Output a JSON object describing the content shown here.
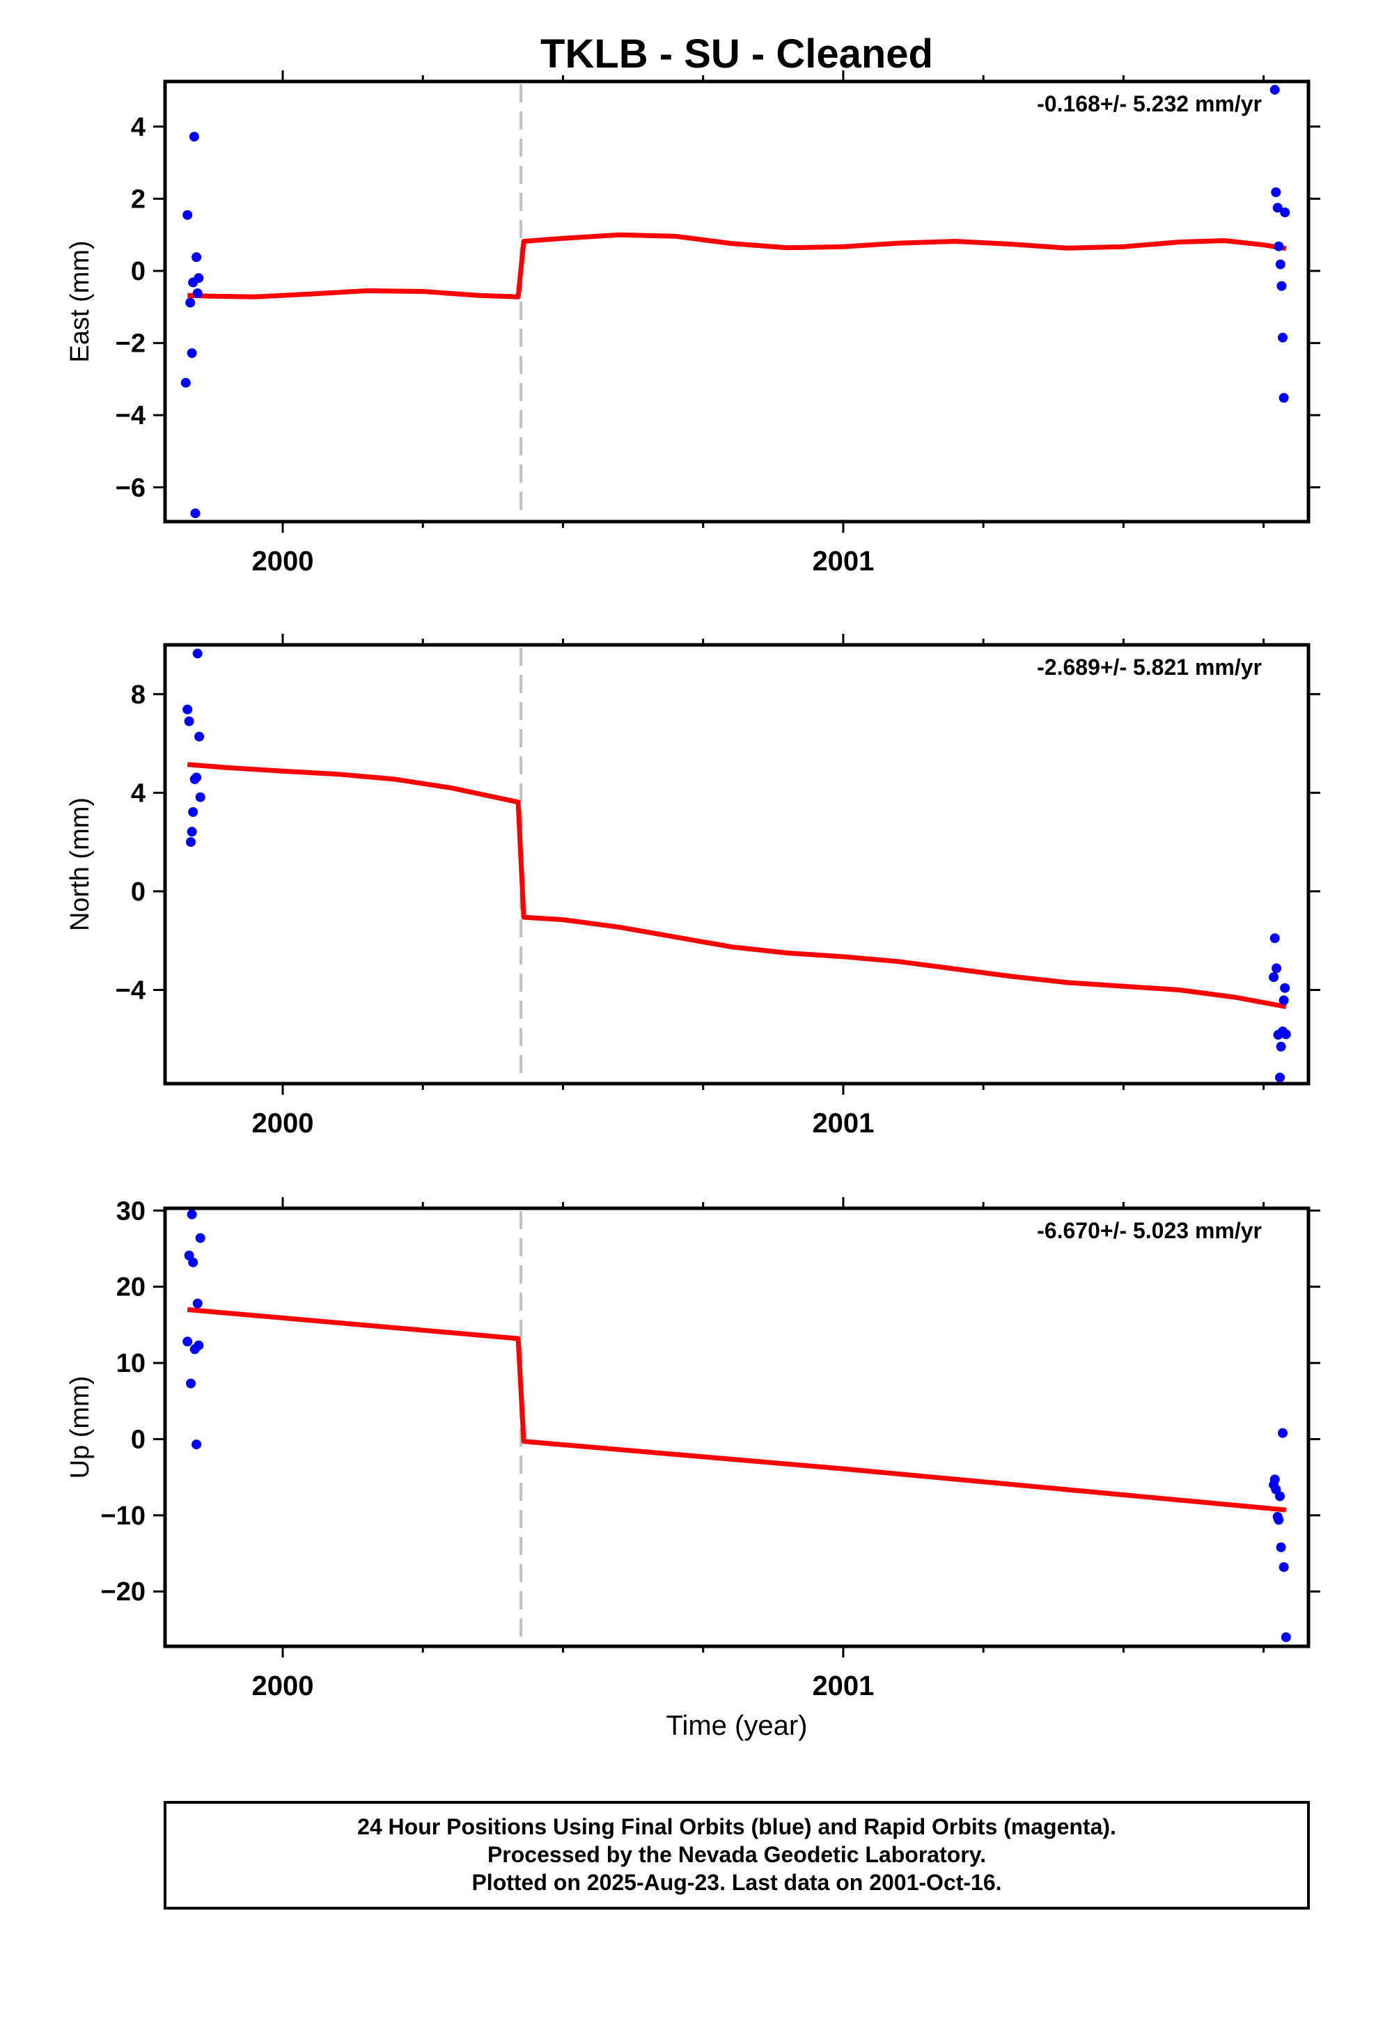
{
  "title": "TKLB  - SU - Cleaned",
  "footer": {
    "lines": [
      "24 Hour Positions Using Final Orbits (blue) and Rapid Orbits (magenta).",
      "Processed by the Nevada Geodetic Laboratory.",
      "Plotted on 2025-Aug-23. Last data on 2001-Oct-16."
    ]
  },
  "colors": {
    "data_points": "#0000ff",
    "model_line": "#ff0000",
    "break_line": "#c0c0c0",
    "frame": "#000000"
  },
  "chart_data": [
    {
      "type": "scatter",
      "name": "east",
      "ylabel": "East (mm)",
      "xlabel": "",
      "rate_label": "-0.168+/- 5.232 mm/yr",
      "xlim": [
        1999.79,
        2001.83
      ],
      "ylim": [
        -6.95,
        5.25
      ],
      "yticks": [
        -6,
        -4,
        -2,
        0,
        2,
        4
      ],
      "ytick_labels": [
        "−6",
        "−4",
        "−2",
        "0",
        "2",
        "4"
      ],
      "xticks_labeled": [
        2000,
        2001
      ],
      "xtick_labels": [
        "2000",
        "2001"
      ],
      "xticks_minor": [
        2000.25,
        2000.5,
        2000.75,
        2001.25,
        2001.5,
        2001.75
      ],
      "break_x": 2000.425,
      "points": [
        [
          1999.83,
          1.55
        ],
        [
          1999.835,
          -0.88
        ],
        [
          1999.838,
          -2.28
        ],
        [
          1999.84,
          -0.32
        ],
        [
          1999.842,
          3.72
        ],
        [
          1999.846,
          0.38
        ],
        [
          1999.848,
          -0.62
        ],
        [
          1999.85,
          -0.2
        ],
        [
          1999.844,
          -6.72
        ],
        [
          1999.827,
          -3.1
        ],
        [
          2001.77,
          5.02
        ],
        [
          2001.772,
          2.18
        ],
        [
          2001.775,
          1.75
        ],
        [
          2001.777,
          0.68
        ],
        [
          2001.78,
          0.18
        ],
        [
          2001.782,
          -0.42
        ],
        [
          2001.784,
          -1.85
        ],
        [
          2001.786,
          -3.52
        ],
        [
          2001.788,
          1.62
        ]
      ],
      "model": [
        [
          1999.83,
          -0.68
        ],
        [
          1999.87,
          -0.7
        ],
        [
          1999.95,
          -0.72
        ],
        [
          2000.05,
          -0.64
        ],
        [
          2000.15,
          -0.55
        ],
        [
          2000.25,
          -0.57
        ],
        [
          2000.35,
          -0.68
        ],
        [
          2000.42,
          -0.72
        ],
        [
          2000.43,
          0.82
        ],
        [
          2000.5,
          0.9
        ],
        [
          2000.6,
          1.0
        ],
        [
          2000.7,
          0.96
        ],
        [
          2000.8,
          0.76
        ],
        [
          2000.9,
          0.64
        ],
        [
          2001.0,
          0.67
        ],
        [
          2001.1,
          0.77
        ],
        [
          2001.2,
          0.82
        ],
        [
          2001.3,
          0.74
        ],
        [
          2001.4,
          0.63
        ],
        [
          2001.5,
          0.67
        ],
        [
          2001.6,
          0.8
        ],
        [
          2001.68,
          0.84
        ],
        [
          2001.75,
          0.72
        ],
        [
          2001.79,
          0.62
        ]
      ]
    },
    {
      "type": "scatter",
      "name": "north",
      "ylabel": "North (mm)",
      "xlabel": "",
      "rate_label": "-2.689+/- 5.821 mm/yr",
      "xlim": [
        1999.79,
        2001.83
      ],
      "ylim": [
        -7.8,
        10.0
      ],
      "yticks": [
        -4,
        0,
        4,
        8
      ],
      "ytick_labels": [
        "−4",
        "0",
        "4",
        "8"
      ],
      "xticks_labeled": [
        2000,
        2001
      ],
      "xtick_labels": [
        "2000",
        "2001"
      ],
      "xticks_minor": [
        2000.25,
        2000.5,
        2000.75,
        2001.25,
        2001.5,
        2001.75
      ],
      "break_x": 2000.425,
      "points": [
        [
          1999.83,
          7.38
        ],
        [
          1999.833,
          6.9
        ],
        [
          1999.836,
          2.0
        ],
        [
          1999.838,
          2.42
        ],
        [
          1999.84,
          3.22
        ],
        [
          1999.843,
          4.55
        ],
        [
          1999.846,
          4.62
        ],
        [
          1999.848,
          9.65
        ],
        [
          1999.851,
          6.28
        ],
        [
          1999.853,
          3.82
        ],
        [
          2001.768,
          -3.48
        ],
        [
          2001.77,
          -1.9
        ],
        [
          2001.773,
          -3.12
        ],
        [
          2001.776,
          -5.82
        ],
        [
          2001.779,
          -7.55
        ],
        [
          2001.781,
          -6.3
        ],
        [
          2001.784,
          -5.68
        ],
        [
          2001.786,
          -4.42
        ],
        [
          2001.788,
          -3.92
        ],
        [
          2001.79,
          -5.8
        ]
      ],
      "model": [
        [
          1999.83,
          5.15
        ],
        [
          1999.9,
          5.02
        ],
        [
          2000.0,
          4.88
        ],
        [
          2000.1,
          4.75
        ],
        [
          2000.2,
          4.55
        ],
        [
          2000.3,
          4.2
        ],
        [
          2000.42,
          3.62
        ],
        [
          2000.43,
          -1.05
        ],
        [
          2000.5,
          -1.15
        ],
        [
          2000.6,
          -1.45
        ],
        [
          2000.7,
          -1.85
        ],
        [
          2000.8,
          -2.25
        ],
        [
          2000.9,
          -2.5
        ],
        [
          2001.0,
          -2.65
        ],
        [
          2001.1,
          -2.85
        ],
        [
          2001.2,
          -3.15
        ],
        [
          2001.3,
          -3.45
        ],
        [
          2001.4,
          -3.7
        ],
        [
          2001.5,
          -3.85
        ],
        [
          2001.6,
          -4.0
        ],
        [
          2001.7,
          -4.3
        ],
        [
          2001.79,
          -4.68
        ]
      ]
    },
    {
      "type": "scatter",
      "name": "up",
      "ylabel": "Up (mm)",
      "xlabel": "Time (year)",
      "rate_label": "-6.670+/- 5.023 mm/yr",
      "xlim": [
        1999.79,
        2001.83
      ],
      "ylim": [
        -27.2,
        30.3
      ],
      "yticks": [
        -20,
        -10,
        0,
        10,
        20,
        30
      ],
      "ytick_labels": [
        "−20",
        "−10",
        "0",
        "10",
        "20",
        "30"
      ],
      "xticks_labeled": [
        2000,
        2001
      ],
      "xtick_labels": [
        "2000",
        "2001"
      ],
      "xticks_minor": [
        2000.25,
        2000.5,
        2000.75,
        2001.25,
        2001.5,
        2001.75
      ],
      "break_x": 2000.425,
      "points": [
        [
          1999.83,
          12.8
        ],
        [
          1999.833,
          24.1
        ],
        [
          1999.836,
          7.3
        ],
        [
          1999.838,
          29.5
        ],
        [
          1999.84,
          23.2
        ],
        [
          1999.843,
          11.8
        ],
        [
          1999.846,
          -0.7
        ],
        [
          1999.848,
          17.8
        ],
        [
          1999.85,
          12.3
        ],
        [
          1999.853,
          26.4
        ],
        [
          2001.768,
          -6.0
        ],
        [
          2001.77,
          -5.3
        ],
        [
          2001.772,
          -6.6
        ],
        [
          2001.775,
          -10.2
        ],
        [
          2001.777,
          -10.6
        ],
        [
          2001.779,
          -7.5
        ],
        [
          2001.781,
          -14.2
        ],
        [
          2001.784,
          0.8
        ],
        [
          2001.786,
          -16.8
        ],
        [
          2001.79,
          -26.0
        ]
      ],
      "model": [
        [
          1999.83,
          17.0
        ],
        [
          2000.42,
          13.2
        ],
        [
          2000.43,
          -0.3
        ],
        [
          2001.0,
          -3.9
        ],
        [
          2001.79,
          -9.3
        ]
      ]
    }
  ]
}
